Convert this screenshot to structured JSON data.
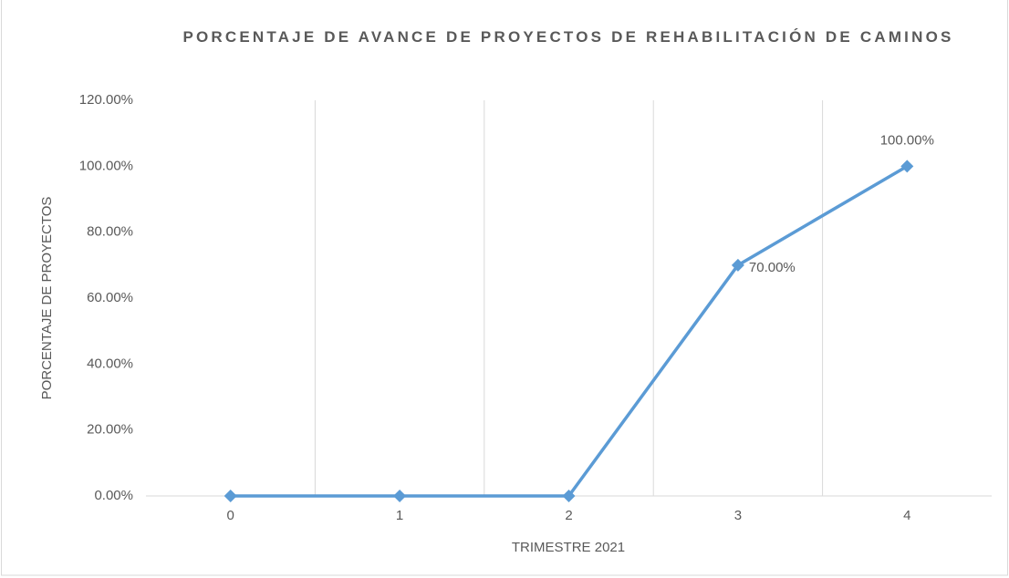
{
  "chart_data": {
    "type": "line",
    "title": "PORCENTAJE DE AVANCE DE PROYECTOS DE REHABILITACIÓN DE CAMINOS",
    "x_label": "TRIMESTRE 2021",
    "y_label": "PORCENTAJE DE PROYECTOS",
    "categories": [
      "0",
      "1",
      "2",
      "3",
      "4"
    ],
    "series": [
      {
        "name": "PORCENTAJE DE PROYECTOS",
        "color": "#5b9bd5",
        "values": [
          0,
          0,
          0,
          70,
          100
        ],
        "value_labels": [
          null,
          null,
          null,
          "70.00%",
          "100.00%"
        ]
      }
    ],
    "ylim": [
      0,
      120
    ],
    "yticks": [
      {
        "value": 0,
        "label": "0.00%"
      },
      {
        "value": 20,
        "label": "20.00%"
      },
      {
        "value": 40,
        "label": "40.00%"
      },
      {
        "value": 60,
        "label": "60.00%"
      },
      {
        "value": 80,
        "label": "80.00%"
      },
      {
        "value": 100,
        "label": "100.00%"
      },
      {
        "value": 120,
        "label": "120.00%"
      }
    ],
    "grid": "x"
  }
}
